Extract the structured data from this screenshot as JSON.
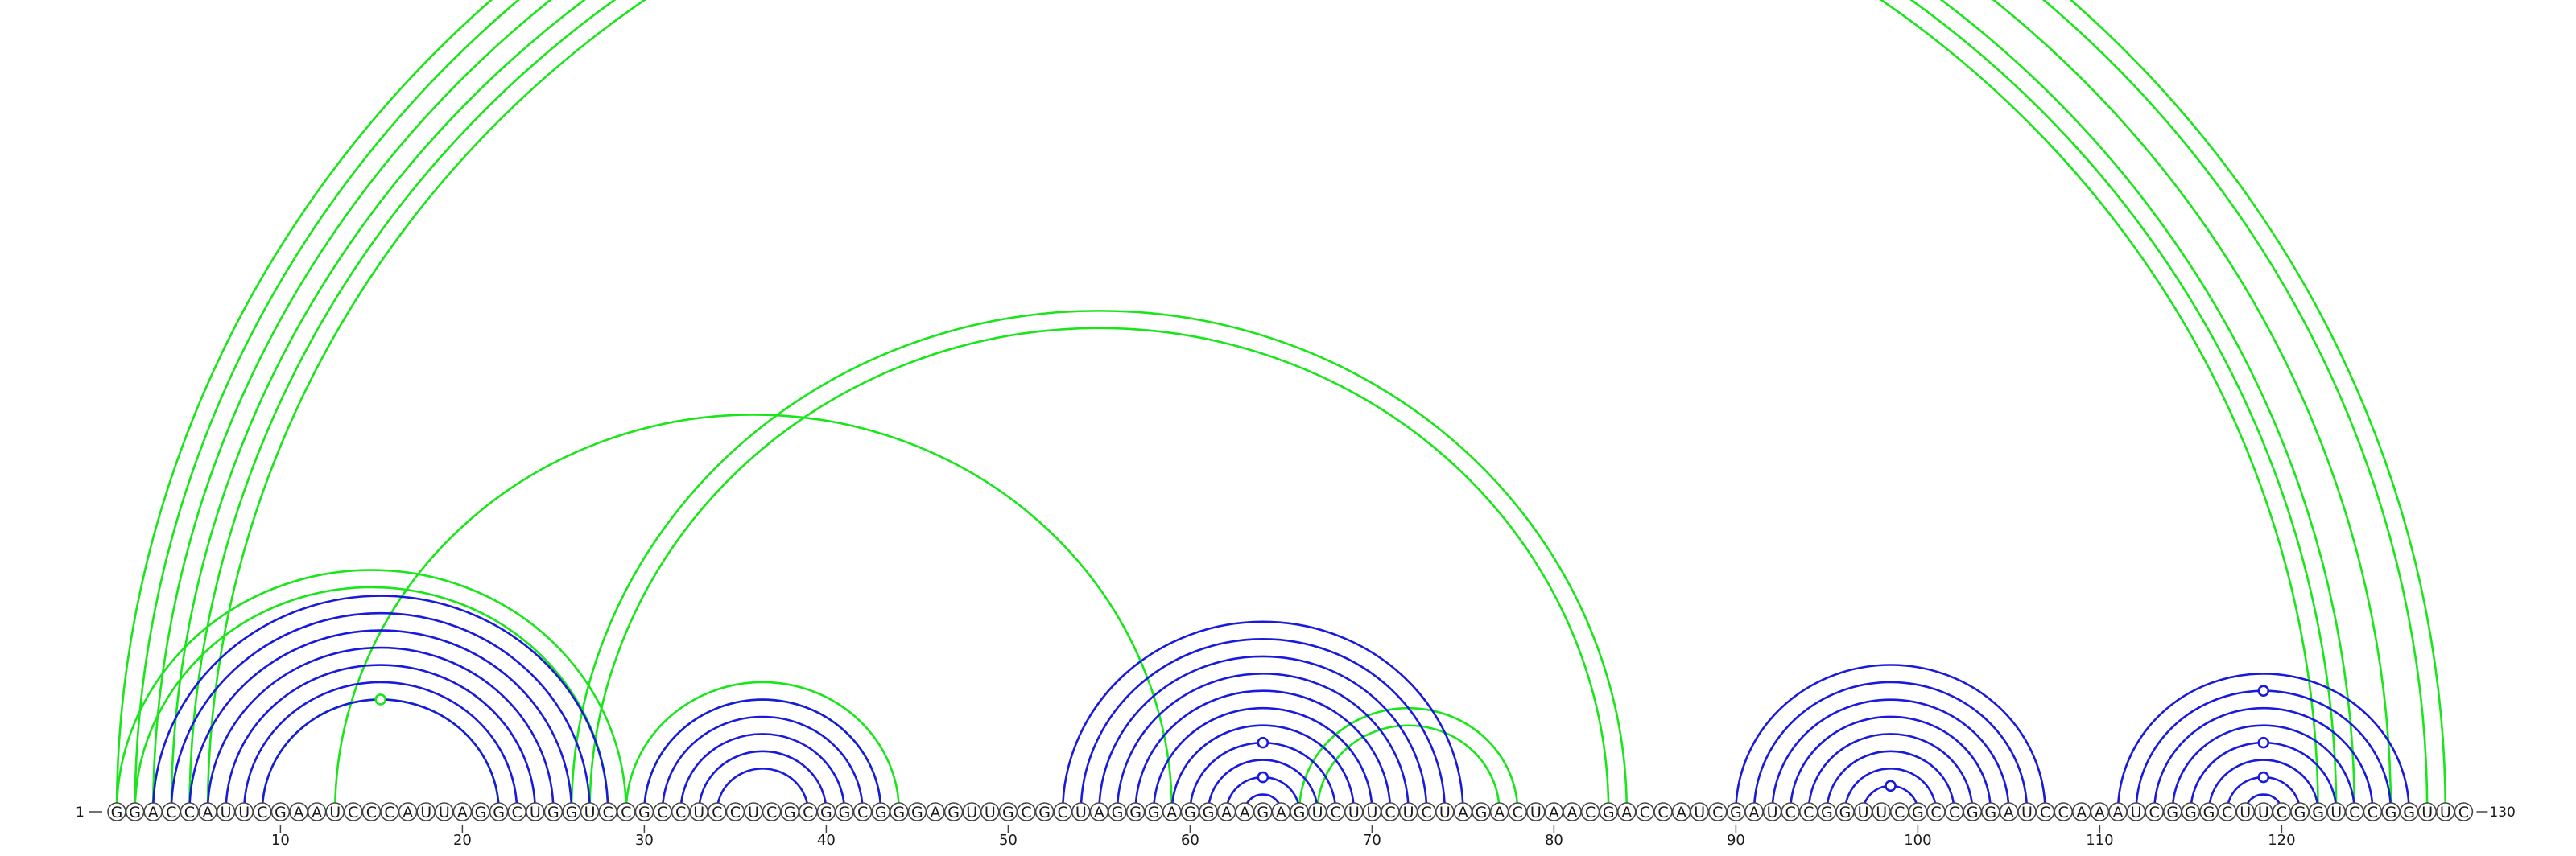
{
  "sequence": "GGACCAUUCGAAUCCCAUUAGGCUGGUCCGCCUCCUCGCGGCGGGAGUUGCGCUAGGGAGGAAGAGUCUUCUCUAGACUAACGACCAUCGAUCCGGUUCGCCGGAUCCAAAUCGGGCUUCGGUCCGGUUC",
  "length": 130,
  "start_label": "1",
  "end_label": "130",
  "ticks": [
    "10",
    "20",
    "30",
    "40",
    "50",
    "60",
    "70",
    "80",
    "90",
    "100",
    "110",
    "120"
  ],
  "colors": {
    "blue": "#1a1adc",
    "green": "#19e619",
    "outline": "#444444"
  },
  "blue_pairs": [
    [
      3,
      28
    ],
    [
      4,
      27
    ],
    [
      5,
      26
    ],
    [
      6,
      25
    ],
    [
      7,
      24
    ],
    [
      8,
      23
    ],
    [
      9,
      22
    ],
    [
      30,
      43
    ],
    [
      31,
      42
    ],
    [
      32,
      41
    ],
    [
      33,
      40
    ],
    [
      34,
      39
    ],
    [
      53,
      75
    ],
    [
      54,
      74
    ],
    [
      55,
      73
    ],
    [
      56,
      72
    ],
    [
      57,
      71
    ],
    [
      58,
      70
    ],
    [
      59,
      69
    ],
    [
      60,
      68
    ],
    [
      61,
      67
    ],
    [
      62,
      66
    ],
    [
      63,
      65
    ],
    [
      90,
      107
    ],
    [
      91,
      106
    ],
    [
      92,
      105
    ],
    [
      93,
      104
    ],
    [
      94,
      103
    ],
    [
      95,
      102
    ],
    [
      96,
      101
    ],
    [
      97,
      100
    ],
    [
      111,
      127
    ],
    [
      112,
      126
    ],
    [
      113,
      125
    ],
    [
      114,
      124
    ],
    [
      115,
      123
    ],
    [
      116,
      122
    ],
    [
      117,
      121
    ],
    [
      118,
      120
    ]
  ],
  "green_pairs": [
    [
      1,
      129
    ],
    [
      2,
      128
    ],
    [
      3,
      126
    ],
    [
      4,
      124
    ],
    [
      5,
      123
    ],
    [
      6,
      122
    ],
    [
      1,
      29
    ],
    [
      2,
      28
    ],
    [
      9,
      22
    ],
    [
      13,
      59
    ],
    [
      26,
      84
    ],
    [
      27,
      83
    ],
    [
      29,
      44
    ],
    [
      30,
      43
    ],
    [
      66,
      78
    ],
    [
      67,
      77
    ]
  ],
  "markers": [
    {
      "color": "green",
      "i": 2,
      "j": 128,
      "pos": 0.5
    },
    {
      "color": "green",
      "i": 9,
      "j": 22,
      "pos": 0.5
    },
    {
      "color": "blue",
      "i": 60,
      "j": 68,
      "pos": 0.5
    },
    {
      "color": "blue",
      "i": 62,
      "j": 66,
      "pos": 0.5
    },
    {
      "color": "blue",
      "i": 97,
      "j": 100,
      "pos": 0.5
    },
    {
      "color": "blue",
      "i": 112,
      "j": 126,
      "pos": 0.5
    },
    {
      "color": "blue",
      "i": 115,
      "j": 123,
      "pos": 0.5
    },
    {
      "color": "blue",
      "i": 117,
      "j": 121,
      "pos": 0.5
    }
  ]
}
